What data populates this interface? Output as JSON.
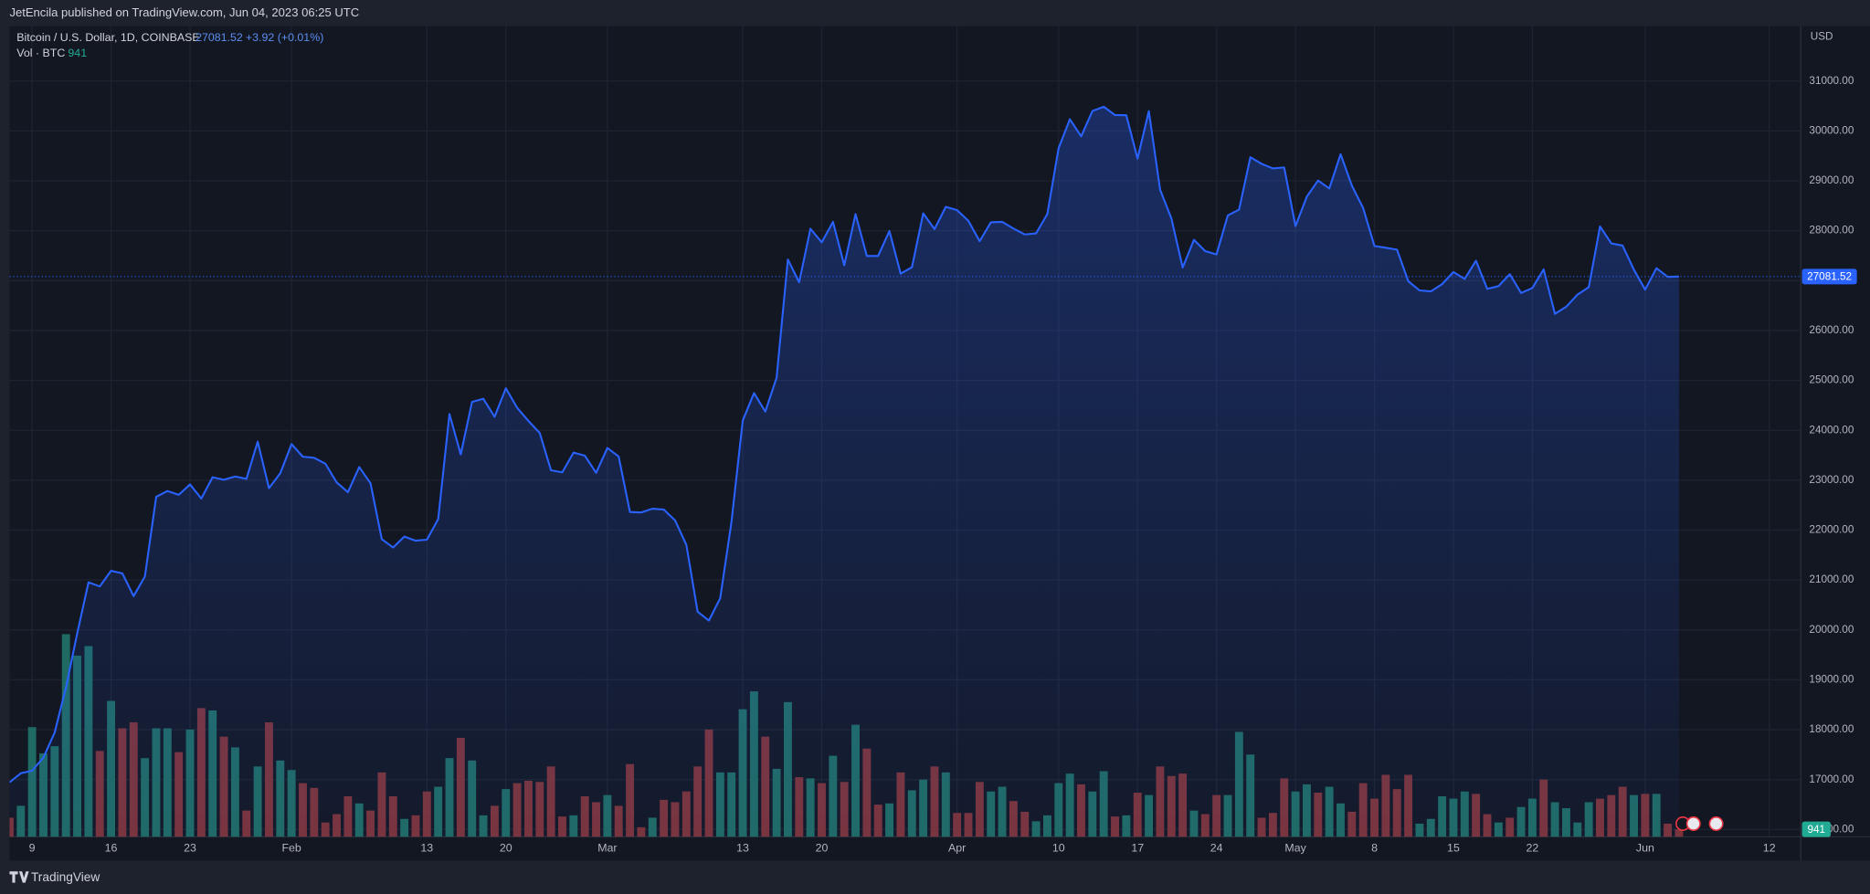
{
  "header": {
    "text": "JetEncila published on TradingView.com, Jun 04, 2023 06:25 UTC"
  },
  "legend": {
    "change": "+3.92 (+0.01%)"
  },
  "currency": "USD",
  "footer": "TradingView",
  "chart_data": {
    "type": "area",
    "xlim": [
      0,
      158.8
    ],
    "xticks": [
      {
        "value": 2,
        "label": "9"
      },
      {
        "value": 9,
        "label": "16"
      },
      {
        "value": 16,
        "label": "23"
      },
      {
        "value": 25,
        "label": "Feb"
      },
      {
        "value": 37,
        "label": "13"
      },
      {
        "value": 44,
        "label": "20"
      },
      {
        "value": 53,
        "label": "Mar"
      },
      {
        "value": 65,
        "label": "13"
      },
      {
        "value": 72,
        "label": "20"
      },
      {
        "value": 84,
        "label": "Apr"
      },
      {
        "value": 93,
        "label": "10"
      },
      {
        "value": 100,
        "label": "17"
      },
      {
        "value": 107,
        "label": "24"
      },
      {
        "value": 114,
        "label": "May"
      },
      {
        "value": 121,
        "label": "8"
      },
      {
        "value": 128,
        "label": "15"
      },
      {
        "value": 135,
        "label": "22"
      },
      {
        "value": 145,
        "label": "Jun"
      },
      {
        "value": 156,
        "label": "12"
      }
    ],
    "ylim": [
      15854,
      32098
    ],
    "yticks": [
      {
        "value": 16000,
        "label": "16000.00"
      },
      {
        "value": 17000,
        "label": "17000.00"
      },
      {
        "value": 18000,
        "label": "18000.00"
      },
      {
        "value": 19000,
        "label": "19000.00"
      },
      {
        "value": 20000,
        "label": "20000.00"
      },
      {
        "value": 21000,
        "label": "21000.00"
      },
      {
        "value": 22000,
        "label": "22000.00"
      },
      {
        "value": 23000,
        "label": "23000.00"
      },
      {
        "value": 24000,
        "label": "24000.00"
      },
      {
        "value": 25000,
        "label": "25000.00"
      },
      {
        "value": 26000,
        "label": "26000.00"
      },
      {
        "value": 27000,
        "label": "27000.00"
      },
      {
        "value": 28000,
        "label": "28000.00"
      },
      {
        "value": 29000,
        "label": "29000.00"
      },
      {
        "value": 30000,
        "label": "30000.00"
      },
      {
        "value": 31000,
        "label": "31000.00"
      }
    ],
    "y2lim": [
      0,
      102000
    ],
    "grid": true,
    "series": [
      {
        "name": "Bitcoin / U.S. Dollar, 1D, COINBASE",
        "type": "area",
        "color": "#2962ff",
        "values": [
          16945,
          17127,
          17178,
          17440,
          17943,
          18846,
          19930,
          20954,
          20871,
          21185,
          21133,
          20677,
          21071,
          22667,
          22783,
          22707,
          22916,
          22632,
          23060,
          23009,
          23074,
          23027,
          23774,
          22840,
          23139,
          23723,
          23471,
          23449,
          23331,
          22955,
          22760,
          23264,
          22939,
          21819,
          21651,
          21870,
          21788,
          21808,
          22220,
          24327,
          23517,
          24569,
          24631,
          24271,
          24842,
          24452,
          24188,
          23947,
          23199,
          23158,
          23554,
          23492,
          23147,
          23646,
          23475,
          22362,
          22354,
          22429,
          22412,
          22195,
          21705,
          20363,
          20188,
          20633,
          22164,
          24197,
          24746,
          24375,
          25053,
          27423,
          26966,
          28038,
          27768,
          28176,
          27307,
          28333,
          27493,
          27494,
          27994,
          27139,
          27268,
          28348,
          28033,
          28478,
          28411,
          28199,
          27790,
          28168,
          28177,
          28044,
          27925,
          27947,
          28333,
          29653,
          30235,
          29892,
          30399,
          30485,
          30318,
          30315,
          29445,
          30397,
          28822,
          28245,
          27262,
          27817,
          27591,
          27525,
          28307,
          28422,
          29473,
          29340,
          29248,
          29268,
          28091,
          28680,
          29006,
          28847,
          29534,
          28904,
          28454,
          27694,
          27658,
          27621,
          26988,
          26804,
          26784,
          26930,
          27172,
          27033,
          27398,
          26833,
          26890,
          27129,
          26753,
          26851,
          27225,
          26334,
          26476,
          26719,
          26868,
          28085,
          27745,
          27702,
          27219,
          26819,
          27249,
          27075,
          27081.52
        ]
      },
      {
        "name": "Vol · BTC",
        "type": "bar",
        "axis": "y2",
        "color": "#22ab94",
        "values": [
          2400,
          3900,
          13800,
          10500,
          11400,
          25500,
          22800,
          24000,
          10800,
          17100,
          13650,
          14400,
          9900,
          13650,
          13650,
          10650,
          13500,
          16200,
          15900,
          12600,
          11250,
          3300,
          8850,
          14400,
          9600,
          8400,
          6750,
          6150,
          1800,
          2850,
          5100,
          4200,
          3300,
          8100,
          5100,
          2250,
          2700,
          5700,
          6300,
          9900,
          12450,
          9600,
          2700,
          3900,
          6000,
          6750,
          7050,
          6900,
          8850,
          2550,
          2700,
          5100,
          4350,
          5250,
          3900,
          9150,
          1200,
          2400,
          4650,
          4350,
          5700,
          8850,
          13500,
          8100,
          8100,
          16050,
          18300,
          12600,
          8550,
          16950,
          7500,
          7350,
          6750,
          10200,
          6900,
          14100,
          11100,
          4050,
          4200,
          8100,
          5850,
          7200,
          8850,
          8100,
          3000,
          3000,
          6900,
          5700,
          6300,
          4500,
          3150,
          1950,
          2700,
          6750,
          7950,
          6600,
          5700,
          8250,
          2550,
          2700,
          5550,
          5250,
          8850,
          7650,
          7950,
          3300,
          2850,
          5250,
          5250,
          13200,
          10350,
          2400,
          3000,
          7350,
          5700,
          6600,
          5550,
          6300,
          4200,
          3150,
          6750,
          4800,
          7800,
          6000,
          7800,
          1650,
          2250,
          5100,
          4800,
          5700,
          5400,
          2850,
          1800,
          2400,
          3750,
          4800,
          7200,
          4350,
          3600,
          1800,
          4350,
          4800,
          5250,
          6300,
          5250,
          5400,
          5400,
          1650,
          941
        ],
        "colors": [
          "#7c3338",
          "#1f6b63",
          "#1f6b63",
          "#1f6b63",
          "#1f6b63",
          "#1f6b63",
          "#1f6b63",
          "#1f6b63",
          "#7c3338",
          "#1f6b63",
          "#7c3338",
          "#7c3338",
          "#1f6b63",
          "#1f6b63",
          "#1f6b63",
          "#7c3338",
          "#1f6b63",
          "#7c3338",
          "#1f6b63",
          "#7c3338",
          "#1f6b63",
          "#7c3338",
          "#1f6b63",
          "#7c3338",
          "#1f6b63",
          "#1f6b63",
          "#7c3338",
          "#7c3338",
          "#7c3338",
          "#7c3338",
          "#7c3338",
          "#1f6b63",
          "#7c3338",
          "#7c3338",
          "#7c3338",
          "#1f6b63",
          "#7c3338",
          "#7c3338",
          "#1f6b63",
          "#1f6b63",
          "#7c3338",
          "#1f6b63",
          "#1f6b63",
          "#7c3338",
          "#1f6b63",
          "#7c3338",
          "#7c3338",
          "#7c3338",
          "#7c3338",
          "#7c3338",
          "#1f6b63",
          "#7c3338",
          "#7c3338",
          "#1f6b63",
          "#7c3338",
          "#7c3338",
          "#7c3338",
          "#1f6b63",
          "#7c3338",
          "#7c3338",
          "#7c3338",
          "#7c3338",
          "#7c3338",
          "#1f6b63",
          "#1f6b63",
          "#1f6b63",
          "#1f6b63",
          "#7c3338",
          "#1f6b63",
          "#1f6b63",
          "#7c3338",
          "#1f6b63",
          "#7c3338",
          "#1f6b63",
          "#7c3338",
          "#1f6b63",
          "#7c3338",
          "#7c3338",
          "#1f6b63",
          "#7c3338",
          "#1f6b63",
          "#1f6b63",
          "#7c3338",
          "#1f6b63",
          "#7c3338",
          "#7c3338",
          "#7c3338",
          "#1f6b63",
          "#1f6b63",
          "#7c3338",
          "#7c3338",
          "#1f6b63",
          "#1f6b63",
          "#1f6b63",
          "#1f6b63",
          "#7c3338",
          "#1f6b63",
          "#1f6b63",
          "#7c3338",
          "#1f6b63",
          "#7c3338",
          "#1f6b63",
          "#7c3338",
          "#7c3338",
          "#7c3338",
          "#1f6b63",
          "#7c3338",
          "#7c3338",
          "#1f6b63",
          "#1f6b63",
          "#1f6b63",
          "#7c3338",
          "#7c3338",
          "#7c3338",
          "#1f6b63",
          "#1f6b63",
          "#7c3338",
          "#1f6b63",
          "#1f6b63",
          "#7c3338",
          "#7c3338",
          "#7c3338",
          "#7c3338",
          "#7c3338",
          "#7c3338",
          "#1f6b63",
          "#1f6b63",
          "#1f6b63",
          "#1f6b63",
          "#1f6b63",
          "#7c3338",
          "#7c3338",
          "#1f6b63",
          "#7c3338",
          "#1f6b63",
          "#1f6b63",
          "#7c3338",
          "#1f6b63",
          "#1f6b63",
          "#1f6b63",
          "#1f6b63",
          "#7c3338",
          "#7c3338",
          "#7c3338",
          "#1f6b63",
          "#7c3338",
          "#1f6b63",
          "#7c3338",
          "#7c3338"
        ]
      }
    ]
  }
}
